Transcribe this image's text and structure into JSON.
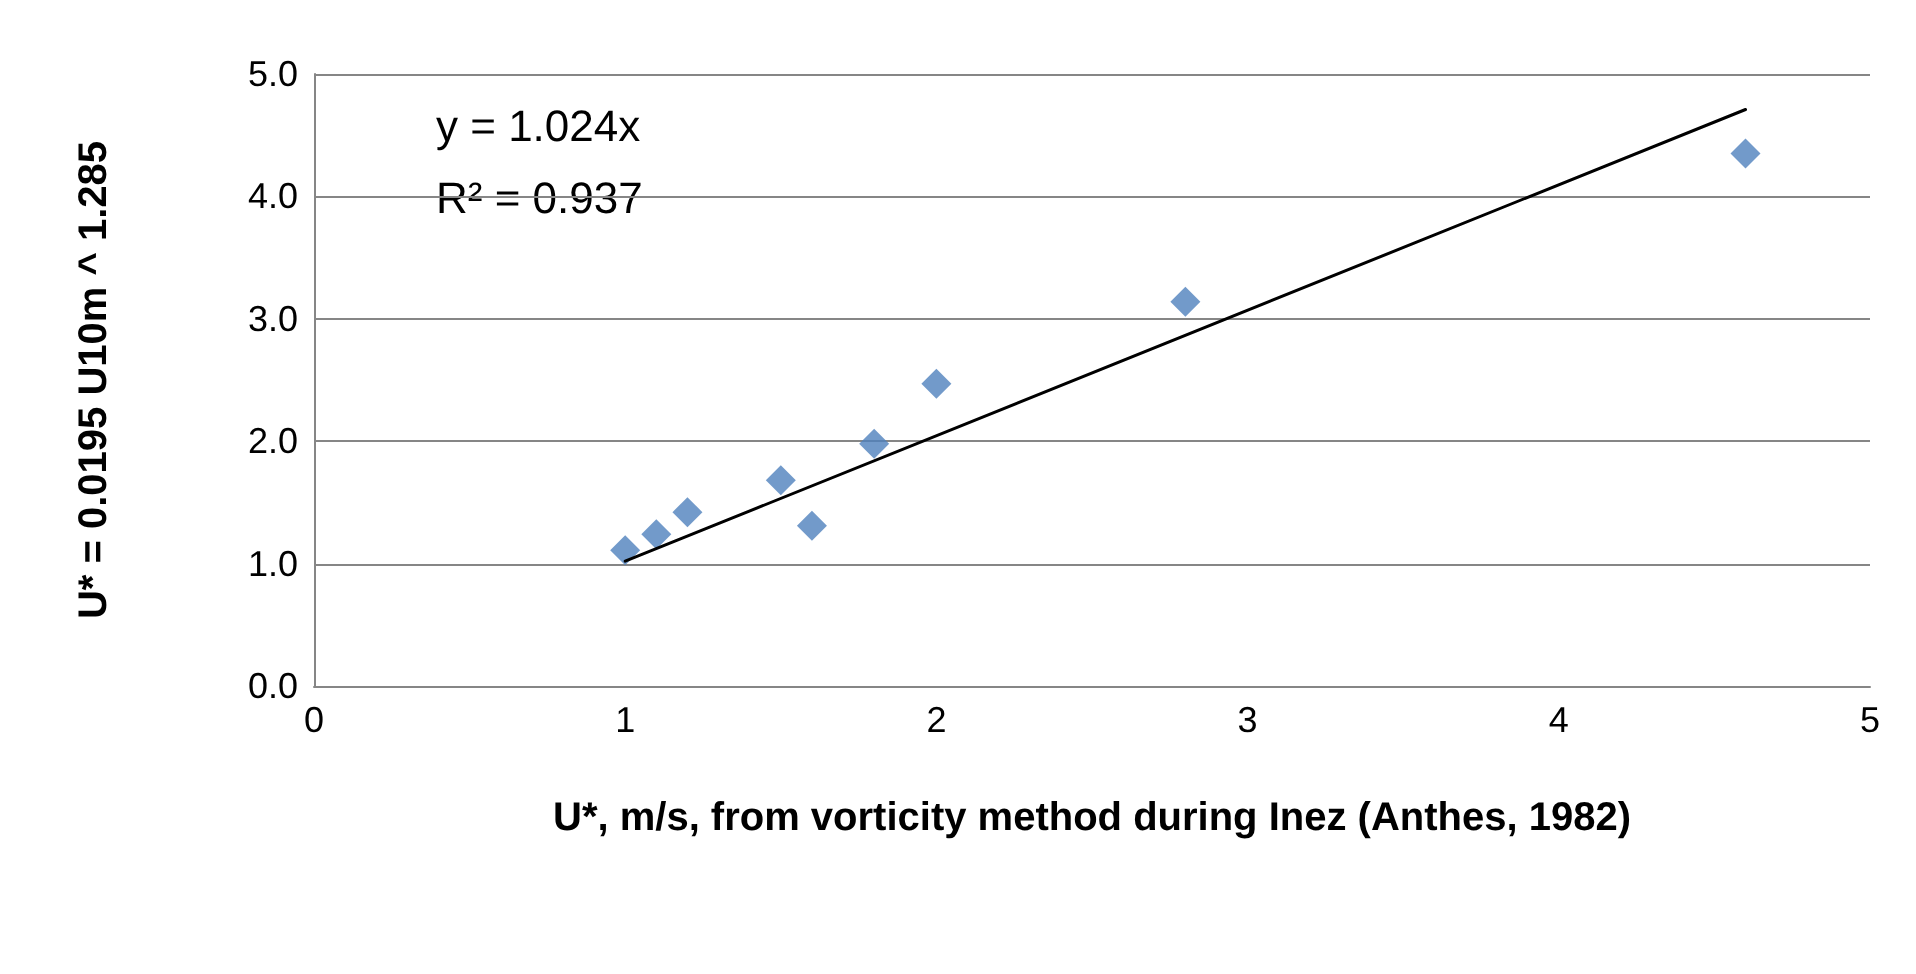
{
  "chart_data": {
    "type": "scatter",
    "xlabel": "U*, m/s, from vorticity method during Inez (Anthes, 1982)",
    "ylabel": "U* = 0.0195 U10m ^ 1.285",
    "annotations": [
      "y = 1.024x",
      "R² = 0.937"
    ],
    "xlim": [
      0,
      5
    ],
    "xticks": [
      0,
      1,
      2,
      3,
      4,
      5
    ],
    "ylim": [
      0,
      5
    ],
    "yticks": [
      {
        "value": 0,
        "label": "0.0"
      },
      {
        "value": 1,
        "label": "1.0"
      },
      {
        "value": 2,
        "label": "2.0"
      },
      {
        "value": 3,
        "label": "3.0"
      },
      {
        "value": 4,
        "label": "4.0"
      },
      {
        "value": 5,
        "label": "5.0"
      }
    ],
    "grid": "y",
    "series": [
      {
        "color": "#4f81bd",
        "marker": "diamond",
        "x": [
          1.0,
          1.1,
          1.2,
          1.5,
          1.6,
          1.8,
          2.0,
          2.8,
          4.6
        ],
        "values": [
          1.11,
          1.24,
          1.42,
          1.68,
          1.31,
          1.98,
          2.47,
          3.14,
          4.35
        ]
      },
      {
        "type": "line",
        "color": "#000000",
        "marker": "none",
        "line_style": "solid",
        "x": [
          1.0,
          4.6
        ],
        "values": [
          1.02,
          4.71
        ]
      }
    ]
  }
}
